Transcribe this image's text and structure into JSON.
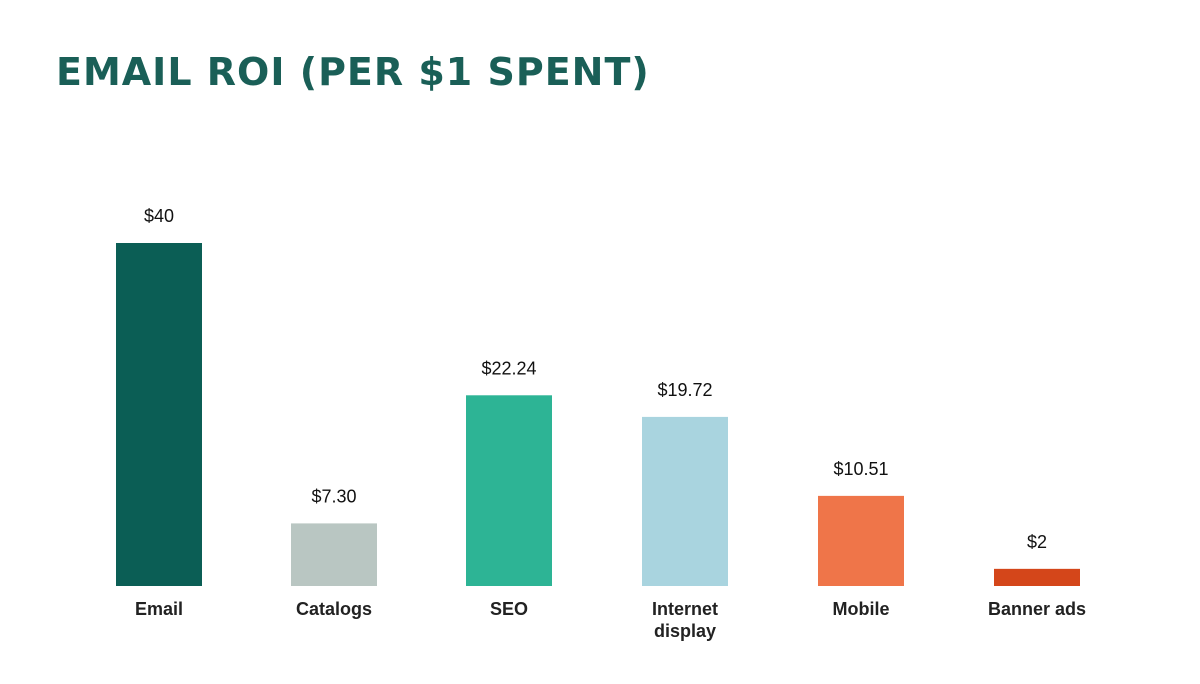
{
  "chart_data": {
    "type": "bar",
    "title": "EMAIL ROI (PER $1 SPENT)",
    "categories": [
      "Email",
      "Catalogs",
      "SEO",
      "Internet display",
      "Mobile",
      "Banner ads"
    ],
    "category_lines": [
      [
        "Email"
      ],
      [
        "Catalogs"
      ],
      [
        "SEO"
      ],
      [
        "Internet",
        "display"
      ],
      [
        "Mobile"
      ],
      [
        "Banner ads"
      ]
    ],
    "values": [
      40,
      7.3,
      22.24,
      19.72,
      10.51,
      2
    ],
    "value_labels": [
      "$40",
      "$7.30",
      "$22.24",
      "$19.72",
      "$10.51",
      "$2"
    ],
    "colors": [
      "#0b5e55",
      "#b9c6c2",
      "#2db495",
      "#a9d4df",
      "#ef7549",
      "#d4461a"
    ],
    "ylim": [
      0,
      40
    ],
    "grid": false,
    "legend": "none"
  }
}
